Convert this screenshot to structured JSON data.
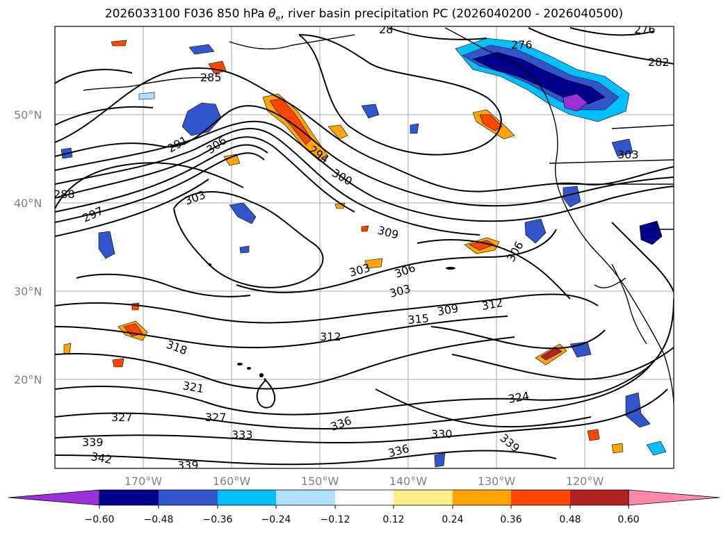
{
  "title": {
    "run": "2026033100 F036 850 hPa ",
    "theta_symbol": "θ",
    "theta_sub": "e",
    "rest": ", river basin precipitation PC (2026040200 - 2026040500)"
  },
  "map": {
    "lat_labels": [
      "50°N",
      "40°N",
      "30°N",
      "20°N"
    ],
    "lon_labels": [
      "170°W",
      "160°W",
      "150°W",
      "140°W",
      "130°W",
      "120°W"
    ],
    "contour_labels": [
      "285",
      "291",
      "297",
      "288",
      "303",
      "306",
      "294",
      "300",
      "309",
      "303",
      "306",
      "303",
      "309",
      "312",
      "315",
      "312",
      "318",
      "321",
      "327",
      "327",
      "333",
      "339",
      "342",
      "339",
      "336",
      "330",
      "336",
      "324",
      "339",
      "306",
      "303",
      "282",
      "276",
      "276",
      "28"
    ]
  },
  "colorbar": {
    "colors": [
      "#9b30d9",
      "#00008b",
      "#3355cc",
      "#00bfff",
      "#b0e0ff",
      "#ffffff",
      "#ffee88",
      "#ffa500",
      "#ff4500",
      "#b22222",
      "#ff88aa"
    ],
    "tick_labels": [
      "−0.60",
      "−0.48",
      "−0.36",
      "−0.24",
      "−0.12",
      "0.12",
      "0.24",
      "0.36",
      "0.48",
      "0.60"
    ]
  }
}
